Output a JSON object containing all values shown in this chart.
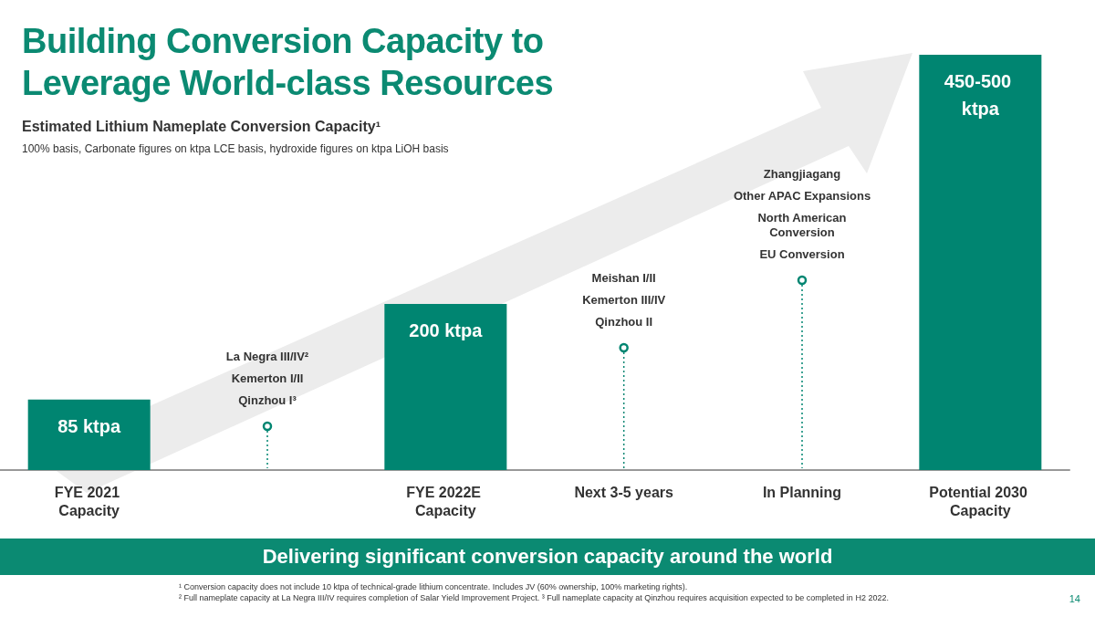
{
  "chart_data": {
    "type": "bar",
    "title": "Building Conversion Capacity to Leverage World-class Resources",
    "subtitle": "Estimated Lithium Nameplate Conversion Capacity¹",
    "categories": [
      "FYE 2021 Capacity",
      null,
      "FYE 2022E Capacity",
      "Next 3-5 years",
      "In Planning",
      "Potential 2030 Capacity"
    ],
    "values": [
      85,
      null,
      200,
      null,
      null,
      500
    ],
    "value_labels": [
      "85 ktpa",
      null,
      "200 ktpa",
      null,
      null,
      "450-500 ktpa"
    ],
    "color": "#008571",
    "grid": false,
    "annotations": [
      "La Negra III/IV²\nKemerton I/II\nQinzhou I³",
      "Meishan I/II\nKemerton III/IV\nQinzhou II",
      "Zhangjiagang\nOther APAC Expansions\nNorth American Conversion\nEU Conversion",
      "100% basis, Carbonate figures on ktpa LCE basis, hydroxide figures on ktpa LiOH basis",
      "Delivering significant conversion capacity around the world",
      "¹ Conversion capacity does not include 10 ktpa of technical-grade lithium concentrate. Includes JV (60% ownership, 100% marketing rights).",
      "² Full nameplate capacity at La Negra III/IV requires completion of Salar Yield Improvement Project. ³ Full nameplate capacity at Qinzhou requires acquisition expected to be completed in H2 2022.",
      "14"
    ]
  }
}
